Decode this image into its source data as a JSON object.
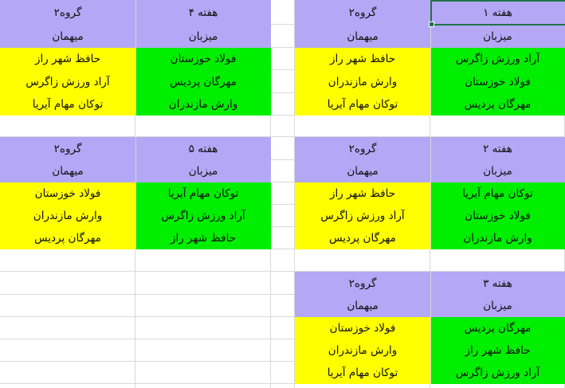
{
  "colors": {
    "header": "#b4a7f5",
    "home": "#00ee00",
    "away": "#ffff00",
    "grid": "#d9d9d9",
    "selection": "#217346"
  },
  "labels": {
    "group": "گروه۲",
    "home": "میزبان",
    "away": "میهمان"
  },
  "weeks": [
    {
      "title": "هفته ۱",
      "home": [
        "آراد ورزش زاگرس",
        "فولاد خوزستان",
        "مهرگان پردیس"
      ],
      "away": [
        "حافظ شهر راز",
        "وارش مازندران",
        "توکان مهام آیریا"
      ]
    },
    {
      "title": "هفته ۲",
      "home": [
        "توکان مهام آیریا",
        "فولاد خوزستان",
        "وارش مازندران"
      ],
      "away": [
        "حافظ شهر راز",
        "آراد ورزش زاگرس",
        "مهرگان پردیس"
      ]
    },
    {
      "title": "هفته ۳",
      "home": [
        "مهرگان پردیس",
        "حافظ شهر راز",
        "آراد ورزش زاگرس"
      ],
      "away": [
        "فولاد خوزستان",
        "وارش مازندران",
        "توکان مهام آیریا"
      ]
    },
    {
      "title": "هفته ۴",
      "home": [
        "فولاد خوزستان",
        "مهرگان پردیس",
        "وارش مازندران"
      ],
      "away": [
        "حافظ شهر راز",
        "آراد ورزش زاگرس",
        "توکان مهام آیریا"
      ]
    },
    {
      "title": "هفته ۵",
      "home": [
        "توکان مهام آیریا",
        "آراد ورزش زاگرس",
        "حافظ شهر راز"
      ],
      "away": [
        "فولاد خوزستان",
        "وارش مازندران",
        "مهرگان پردیس"
      ]
    }
  ]
}
